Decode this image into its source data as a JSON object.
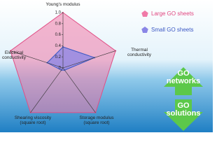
{
  "chart_data": {
    "type": "radar",
    "categories": [
      "Young's modulus",
      "Thermal conductivity",
      "Storage modulus (square root)",
      "Shearing viscosity (square root)",
      "Electrical conductivity"
    ],
    "series": [
      {
        "name": "Large GO sheets",
        "color": "#f07aa8",
        "values": [
          1,
          1,
          1,
          1,
          1
        ]
      },
      {
        "name": "Small GO sheets",
        "color": "#8a86e6",
        "values": [
          0.38,
          0.6,
          0.05,
          0.05,
          0.3
        ]
      }
    ],
    "rlim": [
      0,
      1
    ],
    "rticks": [
      0,
      0.2,
      0.4,
      0.6,
      0.8,
      {
        "value": 1,
        "label": "1.0"
      }
    ],
    "annotations": [
      "GO networks",
      "GO solutions"
    ]
  }
}
